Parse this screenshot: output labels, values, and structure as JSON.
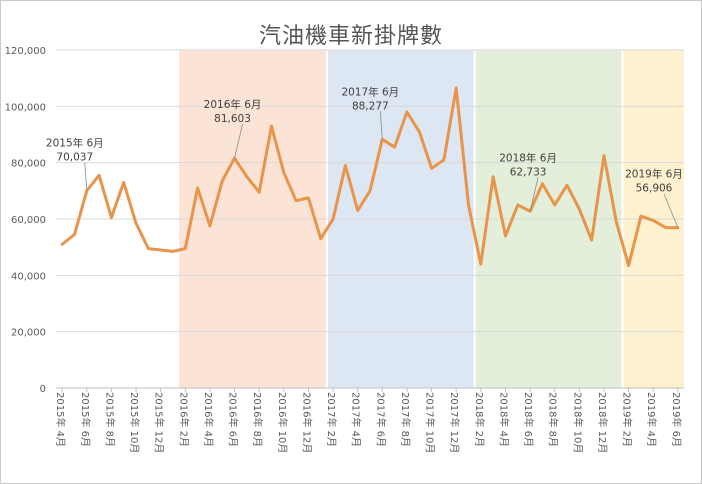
{
  "chart_data": {
    "type": "line",
    "title": "汽油機車新掛牌數",
    "ylim": [
      0,
      120000
    ],
    "y_ticks": [
      "0",
      "20,000",
      "40,000",
      "60,000",
      "80,000",
      "100,000",
      "120,000"
    ],
    "y_tick_values": [
      0,
      20000,
      40000,
      60000,
      80000,
      100000,
      120000
    ],
    "x_tick_labels": [
      "2015年 4月",
      "2015年 6月",
      "2015年 8月",
      "2015年 10月",
      "2015年 12月",
      "2016年 2月",
      "2016年 4月",
      "2016年 6月",
      "2016年 8月",
      "2016年 10月",
      "2016年 12月",
      "2017年 2月",
      "2017年 4月",
      "2017年 6月",
      "2017年 8月",
      "2017年 10月",
      "2017年 12月",
      "2018年 2月",
      "2018年 4月",
      "2018年 6月",
      "2018年 8月",
      "2018年 10月",
      "2018年 12月",
      "2019年 2月",
      "2019年 4月",
      "2019年 6月"
    ],
    "tick_indices": [
      0,
      2,
      4,
      6,
      8,
      10,
      12,
      14,
      16,
      18,
      20,
      22,
      24,
      26,
      28,
      30,
      32,
      34,
      36,
      38,
      40,
      42,
      44,
      46,
      48,
      50
    ],
    "values": [
      51000,
      54500,
      70037,
      75500,
      60500,
      73000,
      58500,
      49500,
      49000,
      48500,
      49500,
      71000,
      57500,
      73500,
      81603,
      75000,
      69500,
      93000,
      76500,
      66500,
      67500,
      53000,
      60000,
      79000,
      63000,
      70000,
      88277,
      85500,
      98000,
      91000,
      78000,
      81000,
      106500,
      65000,
      44000,
      75000,
      54000,
      65000,
      62733,
      72500,
      65000,
      72000,
      63500,
      52500,
      82500,
      59000,
      43500,
      61000,
      59500,
      57000,
      56906
    ],
    "line_color": "#e8944a",
    "bands": [
      {
        "from": 9.5,
        "to": 21.5,
        "color": "#fbe4d6"
      },
      {
        "from": 21.5,
        "to": 33.5,
        "color": "#dde6f3"
      },
      {
        "from": 33.5,
        "to": 45.5,
        "color": "#e3efda"
      },
      {
        "from": 45.5,
        "to": 51,
        "color": "#fdf1cf"
      }
    ],
    "annotations": [
      {
        "index": 2,
        "year_label": "2015年 6月",
        "value_label": "70,037",
        "placement": "above-left"
      },
      {
        "index": 14,
        "year_label": "2016年 6月",
        "value_label": "81,603",
        "placement": "above"
      },
      {
        "index": 26,
        "year_label": "2017年 6月",
        "value_label": "88,277",
        "placement": "above-left"
      },
      {
        "index": 38,
        "year_label": "2018年 6月",
        "value_label": "62,733",
        "placement": "above"
      },
      {
        "index": 50,
        "year_label": "2019年 6月",
        "value_label": "56,906",
        "placement": "above"
      }
    ]
  }
}
